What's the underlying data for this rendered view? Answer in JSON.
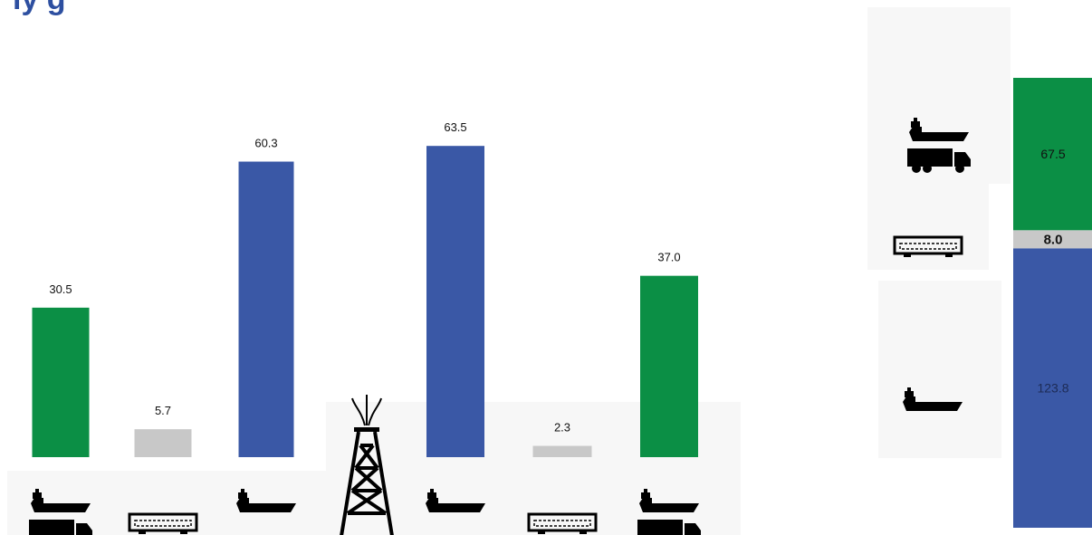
{
  "title": "ly g",
  "colors": {
    "green": "#0b8f45",
    "gray": "#c8c8c8",
    "blue": "#3a58a6",
    "icon": "#000000"
  },
  "chart_data": [
    {
      "type": "bar",
      "categories": [
        "",
        "",
        "",
        "",
        "",
        ""
      ],
      "icons": [
        "ship-truck-icon",
        "railcar-icon",
        "ship-icon",
        "ship-icon",
        "railcar-icon",
        "ship-truck-icon"
      ],
      "values": [
        30.5,
        5.7,
        60.3,
        63.5,
        2.3,
        37.0
      ],
      "labels": [
        "30.5",
        "5.7",
        "60.3",
        "63.5",
        "2.3",
        "37.0"
      ],
      "bar_colors": [
        "green",
        "gray",
        "blue",
        "blue",
        "gray",
        "green"
      ],
      "ylim": [
        0,
        70
      ],
      "center_icon": "oil-derrick-icon"
    },
    {
      "type": "bar",
      "stacked": true,
      "total": 199.3,
      "segments": [
        {
          "value": 123.8,
          "label": "123.8",
          "color": "blue",
          "icon": "ship-icon"
        },
        {
          "value": 8.0,
          "label": "8.0",
          "color": "gray",
          "icon": "railcar-icon"
        },
        {
          "value": 67.5,
          "label": "67.5",
          "color": "green",
          "icon": "ship-truck-icon"
        }
      ]
    }
  ]
}
